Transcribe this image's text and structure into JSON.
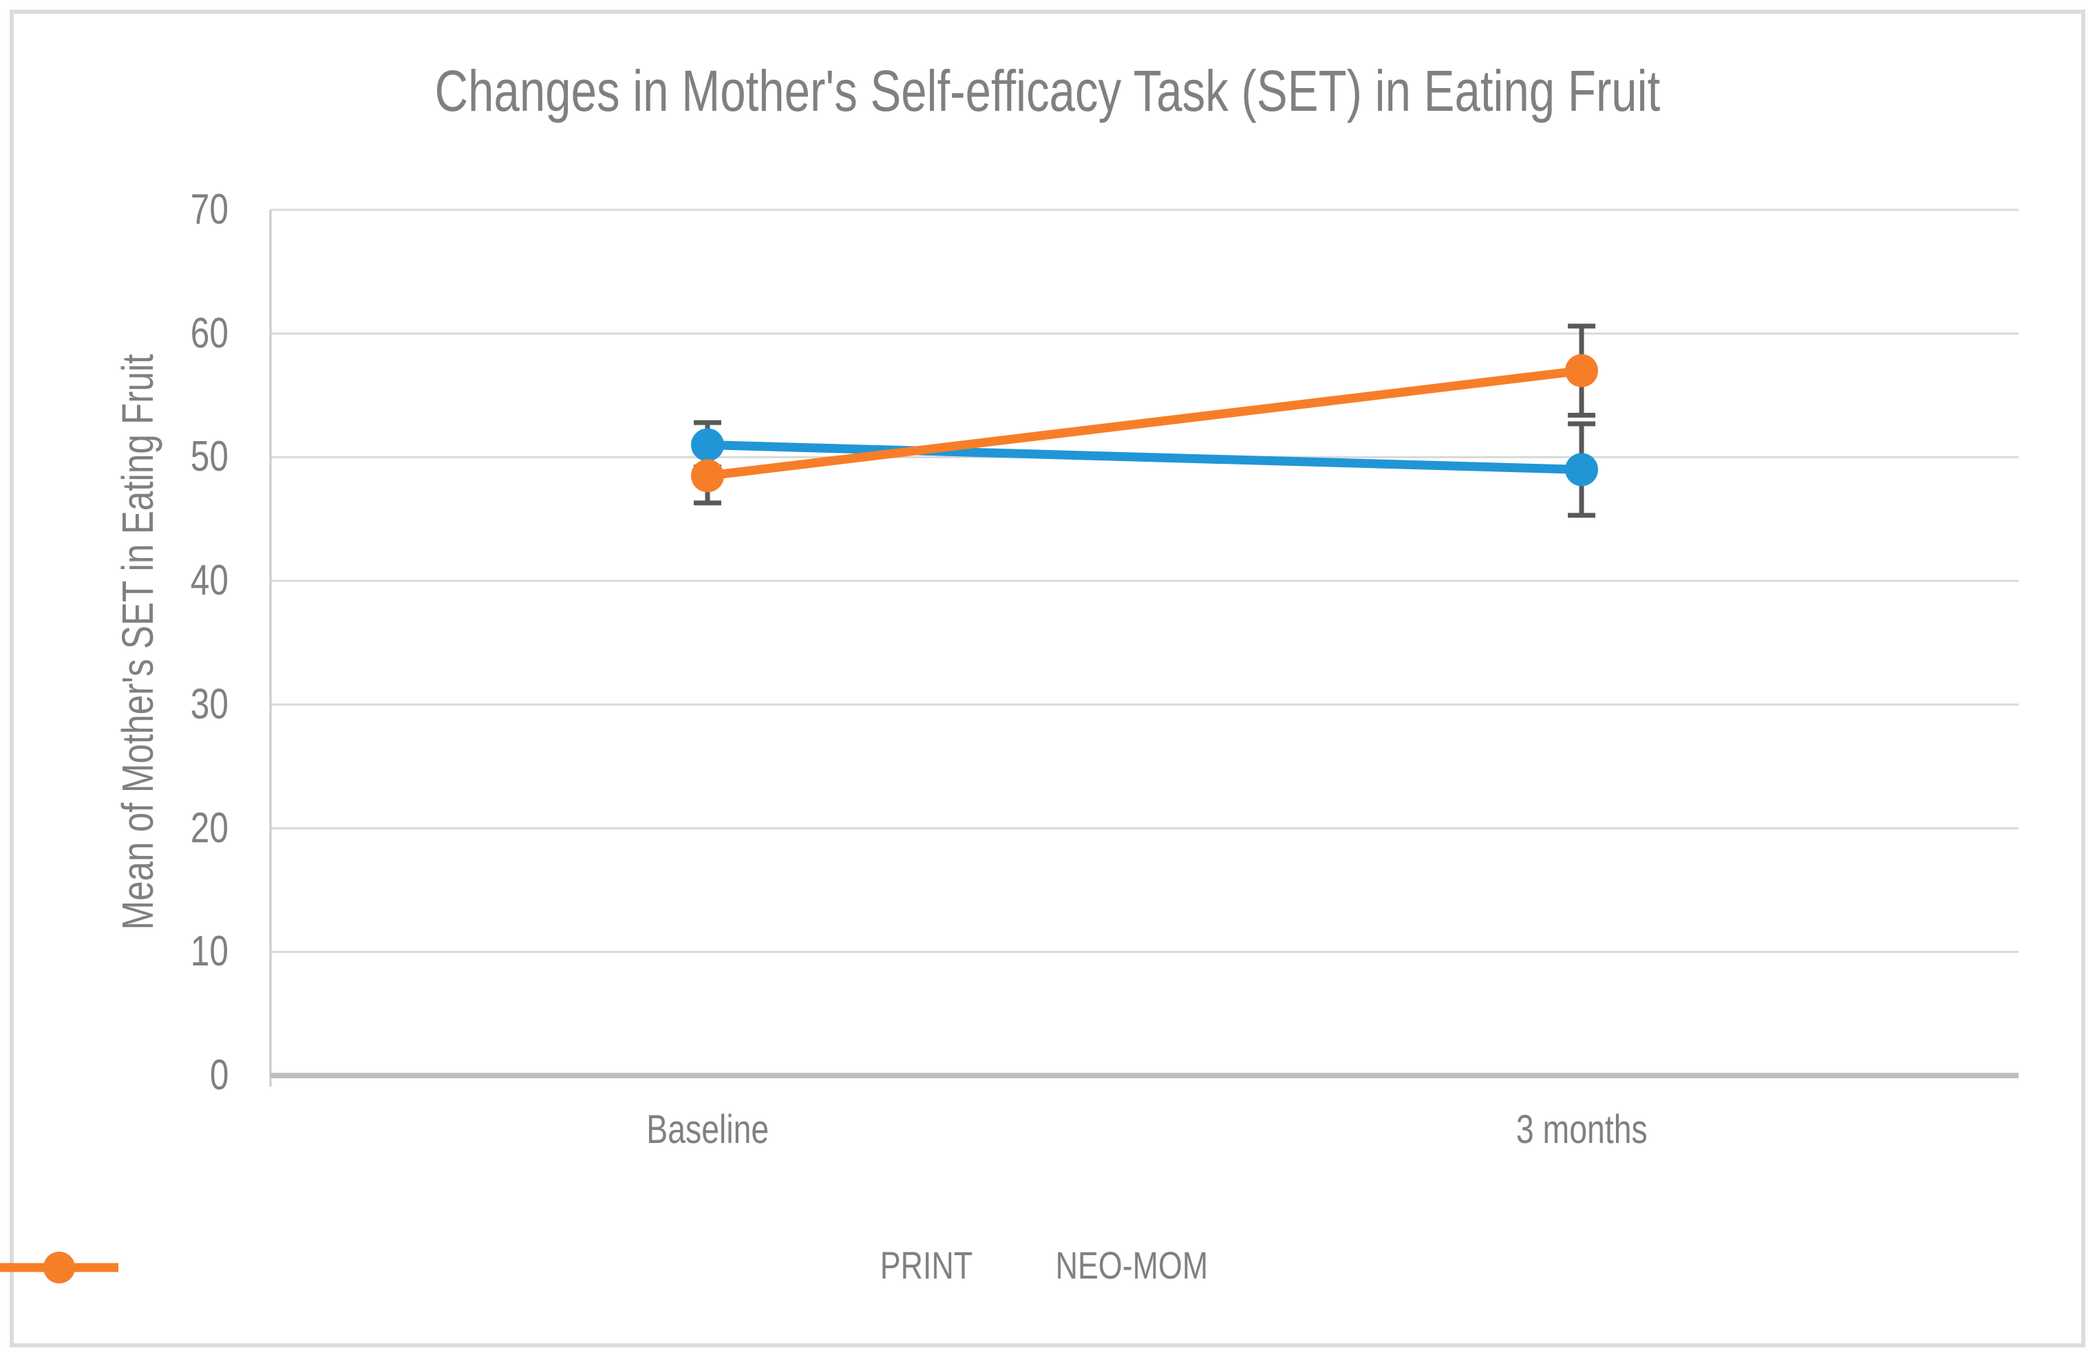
{
  "chart_data": {
    "type": "line",
    "title": "Changes in Mother's Self-efficacy Task (SET) in Eating Fruit",
    "ylabel": "Mean of Mother's SET in Eating Fruit",
    "xlabel": "",
    "categories": [
      "Baseline",
      "3 months"
    ],
    "yticks": [
      0,
      10,
      20,
      30,
      40,
      50,
      60,
      70
    ],
    "ylim": [
      0,
      70
    ],
    "grid": true,
    "legend_position": "bottom",
    "series": [
      {
        "name": "PRINT",
        "color": "#2196D6",
        "values": [
          51,
          49
        ],
        "error": [
          1.8,
          3.7
        ]
      },
      {
        "name": "NEO-MOM",
        "color": "#F77E28",
        "values": [
          48.5,
          57
        ],
        "error": [
          2.2,
          3.6
        ]
      }
    ],
    "colors": {
      "text": "#808080",
      "gridline": "#D9D9D9",
      "vertical_axis_line": "#C9C9C9",
      "horizontal_axis_line": "#BFBFBF",
      "error_bar": "#595959",
      "frame_border": "#DCDCDC"
    }
  }
}
